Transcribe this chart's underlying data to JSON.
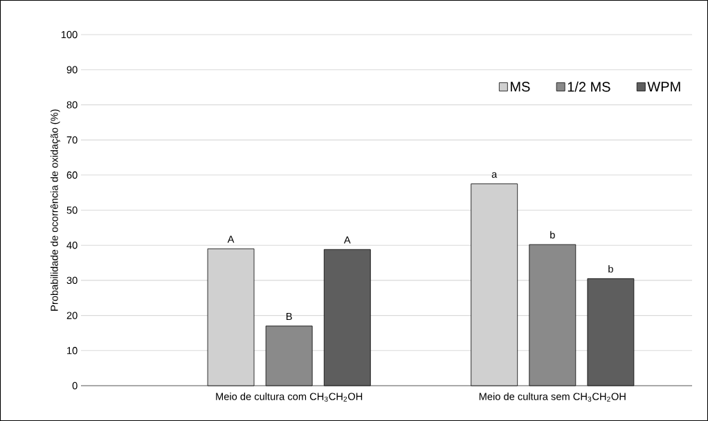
{
  "chart_data": {
    "type": "bar",
    "ylabel": "Probabilidade de ocorrência de oxidação (%)",
    "categories": [
      "Meio de cultura com CH$_{3}$CH$_{2}$OH",
      "Meio de cultura sem CH$_{3}$CH$_{2}$OH"
    ],
    "series": [
      {
        "name": "MS",
        "color": "#d0d0d0",
        "values": [
          39.0,
          57.5
        ],
        "value_labels": [
          "A",
          "a"
        ]
      },
      {
        "name": "1/2 MS",
        "color": "#8a8a8a",
        "values": [
          17.0,
          40.2
        ],
        "value_labels": [
          "B",
          "b"
        ]
      },
      {
        "name": "WPM",
        "color": "#5e5e5e",
        "values": [
          38.8,
          30.5
        ],
        "value_labels": [
          "A",
          "b"
        ]
      }
    ],
    "ylim": [
      0,
      100
    ],
    "yticks": [
      0,
      10,
      20,
      30,
      40,
      50,
      60,
      70,
      80,
      90,
      100
    ],
    "grid": "y",
    "legend": "top right"
  }
}
